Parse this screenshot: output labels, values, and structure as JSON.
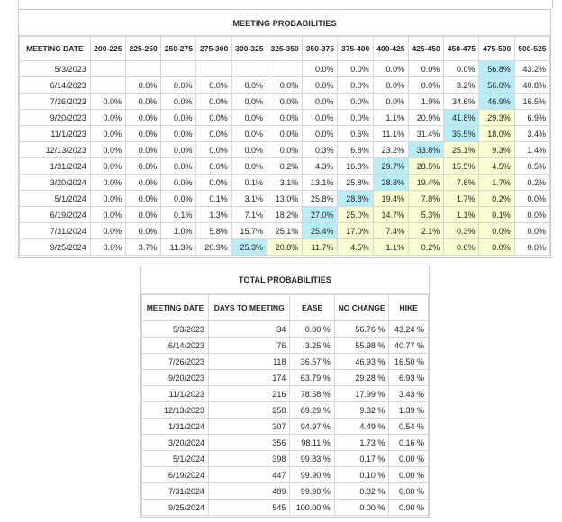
{
  "meeting_probabilities": {
    "title": "MEETING PROBABILITIES",
    "headers": [
      "MEETING DATE",
      "200-225",
      "225-250",
      "250-275",
      "275-300",
      "300-325",
      "325-350",
      "350-375",
      "375-400",
      "400-425",
      "425-450",
      "450-475",
      "475-500",
      "500-525"
    ],
    "rows": [
      {
        "date": "5/3/2023",
        "values": [
          "",
          "",
          "",
          "",
          "",
          "",
          "0.0%",
          "0.0%",
          "0.0%",
          "0.0%",
          "0.0%",
          "56.8%",
          "43.2%"
        ],
        "hl": [
          "",
          "",
          "",
          "",
          "",
          "",
          "",
          "",
          "",
          "",
          "",
          "c",
          ""
        ]
      },
      {
        "date": "6/14/2023",
        "values": [
          "",
          "0.0%",
          "0.0%",
          "0.0%",
          "0.0%",
          "0.0%",
          "0.0%",
          "0.0%",
          "0.0%",
          "0.0%",
          "3.2%",
          "56.0%",
          "40.8%"
        ],
        "hl": [
          "",
          "",
          "",
          "",
          "",
          "",
          "",
          "",
          "",
          "",
          "",
          "c",
          ""
        ]
      },
      {
        "date": "7/26/2023",
        "values": [
          "0.0%",
          "0.0%",
          "0.0%",
          "0.0%",
          "0.0%",
          "0.0%",
          "0.0%",
          "0.0%",
          "0.0%",
          "1.9%",
          "34.6%",
          "46.9%",
          "16.5%"
        ],
        "hl": [
          "",
          "",
          "",
          "",
          "",
          "",
          "",
          "",
          "",
          "",
          "",
          "c",
          ""
        ]
      },
      {
        "date": "9/20/2023",
        "values": [
          "0.0%",
          "0.0%",
          "0.0%",
          "0.0%",
          "0.0%",
          "0.0%",
          "0.0%",
          "0.0%",
          "1.1%",
          "20.9%",
          "41.8%",
          "29.3%",
          "6.9%"
        ],
        "hl": [
          "",
          "",
          "",
          "",
          "",
          "",
          "",
          "",
          "",
          "",
          "c",
          "y",
          ""
        ]
      },
      {
        "date": "11/1/2023",
        "values": [
          "0.0%",
          "0.0%",
          "0.0%",
          "0.0%",
          "0.0%",
          "0.0%",
          "0.0%",
          "0.6%",
          "11.1%",
          "31.4%",
          "35.5%",
          "18.0%",
          "3.4%"
        ],
        "hl": [
          "",
          "",
          "",
          "",
          "",
          "",
          "",
          "",
          "",
          "",
          "c",
          "y",
          ""
        ]
      },
      {
        "date": "12/13/2023",
        "values": [
          "0.0%",
          "0.0%",
          "0.0%",
          "0.0%",
          "0.0%",
          "0.0%",
          "0.3%",
          "6.8%",
          "23.2%",
          "33.8%",
          "25.1%",
          "9.3%",
          "1.4%"
        ],
        "hl": [
          "",
          "",
          "",
          "",
          "",
          "",
          "",
          "",
          "",
          "c",
          "y",
          "y",
          ""
        ]
      },
      {
        "date": "1/31/2024",
        "values": [
          "0.0%",
          "0.0%",
          "0.0%",
          "0.0%",
          "0.0%",
          "0.2%",
          "4.3%",
          "16.8%",
          "29.7%",
          "28.5%",
          "15.5%",
          "4.5%",
          "0.5%"
        ],
        "hl": [
          "",
          "",
          "",
          "",
          "",
          "",
          "",
          "",
          "c",
          "y",
          "y",
          "y",
          ""
        ]
      },
      {
        "date": "3/20/2024",
        "values": [
          "0.0%",
          "0.0%",
          "0.0%",
          "0.0%",
          "0.1%",
          "3.1%",
          "13.1%",
          "25.8%",
          "28.8%",
          "19.4%",
          "7.8%",
          "1.7%",
          "0.2%"
        ],
        "hl": [
          "",
          "",
          "",
          "",
          "",
          "",
          "",
          "",
          "c",
          "y",
          "y",
          "y",
          ""
        ]
      },
      {
        "date": "5/1/2024",
        "values": [
          "0.0%",
          "0.0%",
          "0.0%",
          "0.1%",
          "3.1%",
          "13.0%",
          "25.8%",
          "28.8%",
          "19.4%",
          "7.8%",
          "1.7%",
          "0.2%",
          "0.0%"
        ],
        "hl": [
          "",
          "",
          "",
          "",
          "",
          "",
          "",
          "c",
          "y",
          "y",
          "y",
          "y",
          ""
        ]
      },
      {
        "date": "6/19/2024",
        "values": [
          "0.0%",
          "0.0%",
          "0.1%",
          "1.3%",
          "7.1%",
          "18.2%",
          "27.0%",
          "25.0%",
          "14.7%",
          "5.3%",
          "1.1%",
          "0.1%",
          "0.0%"
        ],
        "hl": [
          "",
          "",
          "",
          "",
          "",
          "",
          "c",
          "y",
          "y",
          "y",
          "y",
          "y",
          ""
        ]
      },
      {
        "date": "7/31/2024",
        "values": [
          "0.0%",
          "0.0%",
          "1.0%",
          "5.8%",
          "15.7%",
          "25.1%",
          "25.4%",
          "17.0%",
          "7.4%",
          "2.1%",
          "0.3%",
          "0.0%",
          "0.0%"
        ],
        "hl": [
          "",
          "",
          "",
          "",
          "",
          "",
          "c",
          "y",
          "y",
          "y",
          "y",
          "y",
          ""
        ]
      },
      {
        "date": "9/25/2024",
        "values": [
          "0.6%",
          "3.7%",
          "11.3%",
          "20.9%",
          "25.3%",
          "20.8%",
          "11.7%",
          "4.5%",
          "1.1%",
          "0.2%",
          "0.0%",
          "0.0%",
          "0.0%"
        ],
        "hl": [
          "",
          "",
          "",
          "",
          "c",
          "y",
          "y",
          "y",
          "y",
          "y",
          "y",
          "y",
          ""
        ]
      }
    ]
  },
  "total_probabilities": {
    "title": "TOTAL PROBABILITIES",
    "headers": [
      "MEETING DATE",
      "DAYS TO MEETING",
      "EASE",
      "NO CHANGE",
      "HIKE"
    ],
    "rows": [
      [
        "5/3/2023",
        "34",
        "0.00 %",
        "56.76 %",
        "43.24 %"
      ],
      [
        "6/14/2023",
        "76",
        "3.25 %",
        "55.98 %",
        "40.77 %"
      ],
      [
        "7/26/2023",
        "118",
        "36.57 %",
        "46.93 %",
        "16.50 %"
      ],
      [
        "9/20/2023",
        "174",
        "63.79 %",
        "29.28 %",
        "6.93 %"
      ],
      [
        "11/1/2023",
        "216",
        "78.58 %",
        "17.99 %",
        "3.43 %"
      ],
      [
        "12/13/2023",
        "258",
        "89.29 %",
        "9.32 %",
        "1.39 %"
      ],
      [
        "1/31/2024",
        "307",
        "94.97 %",
        "4.49 %",
        "0.54 %"
      ],
      [
        "3/20/2024",
        "356",
        "98.11 %",
        "1.73 %",
        "0.16 %"
      ],
      [
        "5/1/2024",
        "398",
        "99.83 %",
        "0.17 %",
        "0.00 %"
      ],
      [
        "6/19/2024",
        "447",
        "99.90 %",
        "0.10 %",
        "0.00 %"
      ],
      [
        "7/31/2024",
        "489",
        "99.98 %",
        "0.02 %",
        "0.00 %"
      ],
      [
        "9/25/2024",
        "545",
        "100.00 %",
        "0.00 %",
        "0.00 %"
      ]
    ]
  },
  "colors": {
    "highlight_max": "#b8ecf6",
    "highlight_secondary": "#fbfbd2",
    "border": "#d6d6d6"
  }
}
